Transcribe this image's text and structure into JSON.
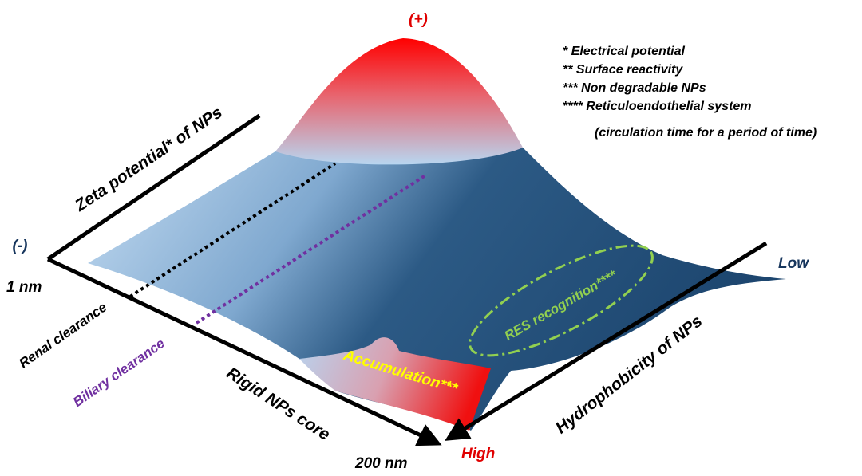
{
  "diagram": {
    "plus": "(+)",
    "minus": "(-)",
    "size_min": "1 nm",
    "size_max": "200 nm",
    "high": "High",
    "low": "Low",
    "zeta_axis": "Zeta potential*  of NPs",
    "renal": "Renal clearance",
    "biliary": "Biliary clearance",
    "core_axis": "Rigid NPs core",
    "hydro_axis": "Hydrophobicity of NPs",
    "accumulation": "Accumulation***",
    "res": "RES recognition****",
    "notes": [
      "* Electrical potential",
      "** Surface reactivity",
      "*** Non degradable NPs",
      "**** Reticuloendothelial system",
      "(circulation time for a period of time)"
    ]
  }
}
